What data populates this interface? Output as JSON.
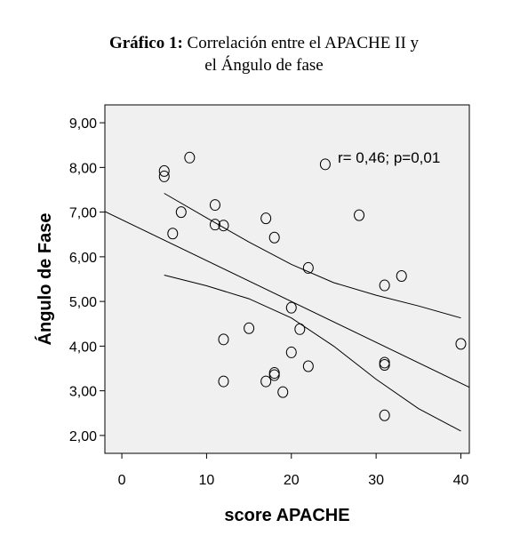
{
  "title": {
    "prefix": "Gráfico 1:",
    "line1": "Correlación entre el APACHE II y",
    "line2": "el Ángulo de fase"
  },
  "chart_data": {
    "type": "scatter",
    "xlabel": "score APACHE",
    "ylabel": "Ángulo de Fase",
    "xlim": [
      -2,
      41
    ],
    "ylim": [
      1.6,
      9.4
    ],
    "xticks": [
      0,
      10,
      20,
      30,
      40
    ],
    "yticks": [
      2,
      3,
      4,
      5,
      6,
      7,
      8,
      9
    ],
    "xtick_labels": [
      "0",
      "10",
      "20",
      "30",
      "40"
    ],
    "ytick_labels": [
      "2,00",
      "3,00",
      "4,00",
      "5,00",
      "6,00",
      "7,00",
      "8,00",
      "9,00"
    ],
    "grid": false,
    "plot_background": "#f0f0f0",
    "annotation": "r= 0,46; p=0,01",
    "points": [
      [
        5,
        7.92
      ],
      [
        5,
        7.8
      ],
      [
        8,
        8.22
      ],
      [
        24,
        8.07
      ],
      [
        7,
        7.0
      ],
      [
        11,
        7.16
      ],
      [
        11,
        6.72
      ],
      [
        12,
        6.7
      ],
      [
        6,
        6.52
      ],
      [
        17,
        6.86
      ],
      [
        18,
        6.43
      ],
      [
        28,
        6.93
      ],
      [
        22,
        5.75
      ],
      [
        33,
        5.57
      ],
      [
        31,
        5.36
      ],
      [
        20,
        4.86
      ],
      [
        21,
        4.38
      ],
      [
        15,
        4.4
      ],
      [
        12,
        4.15
      ],
      [
        40,
        4.05
      ],
      [
        20,
        3.86
      ],
      [
        22,
        3.55
      ],
      [
        31,
        3.63
      ],
      [
        31,
        3.58
      ],
      [
        18,
        3.4
      ],
      [
        18,
        3.35
      ],
      [
        12,
        3.21
      ],
      [
        17,
        3.21
      ],
      [
        19,
        2.97
      ],
      [
        31,
        2.45
      ]
    ],
    "regression": {
      "intercept": 6.83,
      "slope": -0.0915,
      "x_range": [
        -2,
        41
      ]
    },
    "ci_upper": [
      [
        5,
        7.42
      ],
      [
        10,
        6.87
      ],
      [
        15,
        6.33
      ],
      [
        20,
        5.83
      ],
      [
        25,
        5.42
      ],
      [
        30,
        5.14
      ],
      [
        35,
        4.9
      ],
      [
        40,
        4.63
      ]
    ],
    "ci_lower": [
      [
        5,
        5.59
      ],
      [
        10,
        5.35
      ],
      [
        15,
        5.06
      ],
      [
        20,
        4.63
      ],
      [
        25,
        4.0
      ],
      [
        30,
        3.26
      ],
      [
        35,
        2.6
      ],
      [
        40,
        2.1
      ]
    ]
  }
}
